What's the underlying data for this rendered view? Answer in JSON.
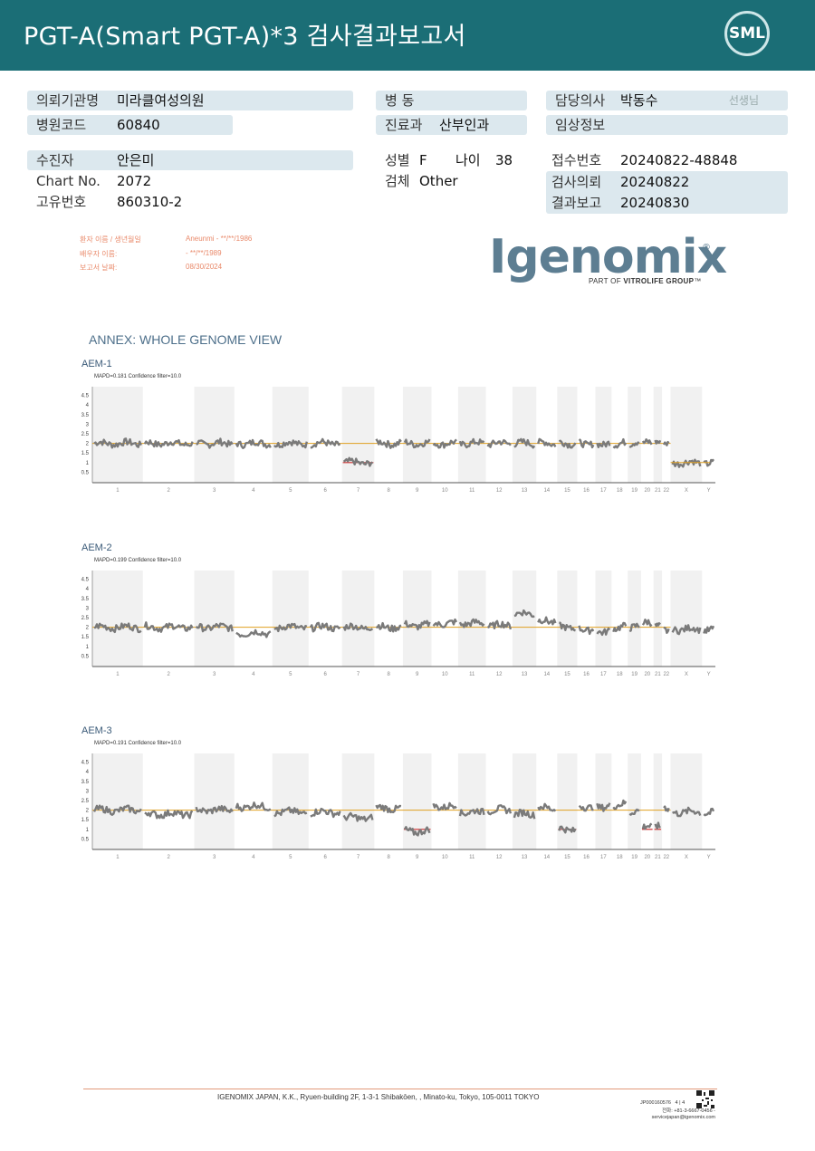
{
  "header": {
    "title": "PGT-A(Smart  PGT-A)*3 검사결과보고서",
    "logo": "SML"
  },
  "patient_info": {
    "institution_label": "의뢰기관명",
    "institution_value": "미라클여성의원",
    "hospital_code_label": "병원코드",
    "hospital_code_value": "60840",
    "ward_label": "병  동",
    "ward_value": "",
    "department_label": "진료과",
    "department_value": "산부인과",
    "doctor_label": "담당의사",
    "doctor_value": "박동수",
    "doctor_suffix": "선생님",
    "clinical_label": "임상정보",
    "clinical_value": "",
    "patient_label": "수진자",
    "patient_value": "안은미",
    "chart_label": "Chart No.",
    "chart_value": "2072",
    "id_label": "고유번호",
    "id_value": "860310-2",
    "sex_label": "성별",
    "sex_value": "F",
    "age_label": "나이",
    "age_value": "38",
    "specimen_label": "검체",
    "specimen_value": "Other",
    "receipt_label": "접수번호",
    "receipt_value": "20240822-48848",
    "request_label": "검사의뢰",
    "request_value": "20240822",
    "report_label": "결과보고",
    "report_value": "20240830"
  },
  "lab_header": {
    "patient_label": "환자 이름 / 생년월일",
    "patient_value": "Aneunmi - **/**/1986",
    "partner_label": "배우자 이름:",
    "partner_value": "- **/**/1989",
    "report_date_label": "보고서 날짜:",
    "report_date_value": "08/30/2024"
  },
  "brand": {
    "name": "Igenomix",
    "registered": "®",
    "tagline_prefix": "PART OF ",
    "tagline_brand": "VITROLIFE GROUP",
    "tagline_tm": "™"
  },
  "annex_title": "ANNEX: WHOLE GENOME VIEW",
  "chart_data": [
    {
      "type": "line",
      "title": "AEM-1",
      "subtitle": "MAPD=0.181 Confidence filter=10.0",
      "x_categories": [
        "1",
        "2",
        "3",
        "4",
        "5",
        "6",
        "7",
        "8",
        "9",
        "10",
        "11",
        "12",
        "13",
        "14",
        "15",
        "16",
        "17",
        "18",
        "19",
        "20",
        "21",
        "22",
        "X",
        "Y"
      ],
      "y_ticks": [
        0.5,
        1,
        1.5,
        2,
        2.5,
        3,
        3.5,
        4,
        4.5
      ],
      "ylim": [
        0,
        5
      ],
      "reference_line": 2,
      "copy_number_by_chromosome": [
        2,
        2,
        2,
        2,
        2,
        2,
        1,
        2,
        2,
        2,
        2,
        2,
        2,
        2,
        2,
        2,
        2,
        2,
        2,
        2,
        2,
        2,
        1,
        1
      ],
      "flagged_segments": [
        {
          "chromosome": "7",
          "copy_number": 1
        }
      ],
      "line_color": "#e0a020",
      "flag_color": "#d03030",
      "point_color": "#7a7a7a"
    },
    {
      "type": "line",
      "title": "AEM-2",
      "subtitle": "MAPD=0.199 Confidence filter=10.0",
      "x_categories": [
        "1",
        "2",
        "3",
        "4",
        "5",
        "6",
        "7",
        "8",
        "9",
        "10",
        "11",
        "12",
        "13",
        "14",
        "15",
        "16",
        "17",
        "18",
        "19",
        "20",
        "21",
        "22",
        "X",
        "Y"
      ],
      "y_ticks": [
        0.5,
        1,
        1.5,
        2,
        2.5,
        3,
        3.5,
        4,
        4.5
      ],
      "ylim": [
        0,
        5
      ],
      "reference_line": 2,
      "copy_number_by_chromosome": [
        2,
        2,
        2,
        1.7,
        2,
        2,
        2,
        2,
        2.1,
        2.2,
        2.2,
        2.1,
        2.7,
        2.3,
        2,
        1.9,
        1.8,
        2,
        2,
        2.2,
        2,
        1.8,
        1.9,
        1.9
      ],
      "flagged_segments": [],
      "line_color": "#e0a020",
      "point_color": "#7a7a7a"
    },
    {
      "type": "line",
      "title": "AEM-3",
      "subtitle": "MAPD=0.191 Confidence filter=10.0",
      "x_categories": [
        "1",
        "2",
        "3",
        "4",
        "5",
        "6",
        "7",
        "8",
        "9",
        "10",
        "11",
        "12",
        "13",
        "14",
        "15",
        "16",
        "17",
        "18",
        "19",
        "20",
        "21",
        "22",
        "X",
        "Y"
      ],
      "y_ticks": [
        0.5,
        1,
        1.5,
        2,
        2.5,
        3,
        3.5,
        4,
        4.5
      ],
      "ylim": [
        0,
        5
      ],
      "reference_line": 2,
      "copy_number_by_chromosome": [
        2,
        1.8,
        2,
        2.2,
        1.9,
        1.9,
        1.6,
        2.1,
        0.9,
        2.2,
        1.9,
        2,
        1.8,
        2.1,
        1,
        2.2,
        2.2,
        2.3,
        1.9,
        1.1,
        1.1,
        2.1,
        1.9,
        1.9
      ],
      "flagged_segments": [
        {
          "chromosome": "9",
          "copy_number": 1
        },
        {
          "chromosome": "15",
          "copy_number": 1
        },
        {
          "chromosome": "20",
          "copy_number": 1
        },
        {
          "chromosome": "21",
          "copy_number": 1
        }
      ],
      "line_color": "#e0a020",
      "flag_color": "#d03030",
      "point_color": "#7a7a7a"
    }
  ],
  "footer": {
    "address": "IGENOMIX JAPAN, K.K., Ryuen-building 2F, 1-3-1 Shibakōen, , Minato-ku, Tokyo, 105-0011 TOKYO",
    "doc_code": "JP000160576",
    "page": "4 | 4",
    "phone": "전화: +81-3-6667-0456  -",
    "email": "servicejapan@igenomix.com"
  }
}
